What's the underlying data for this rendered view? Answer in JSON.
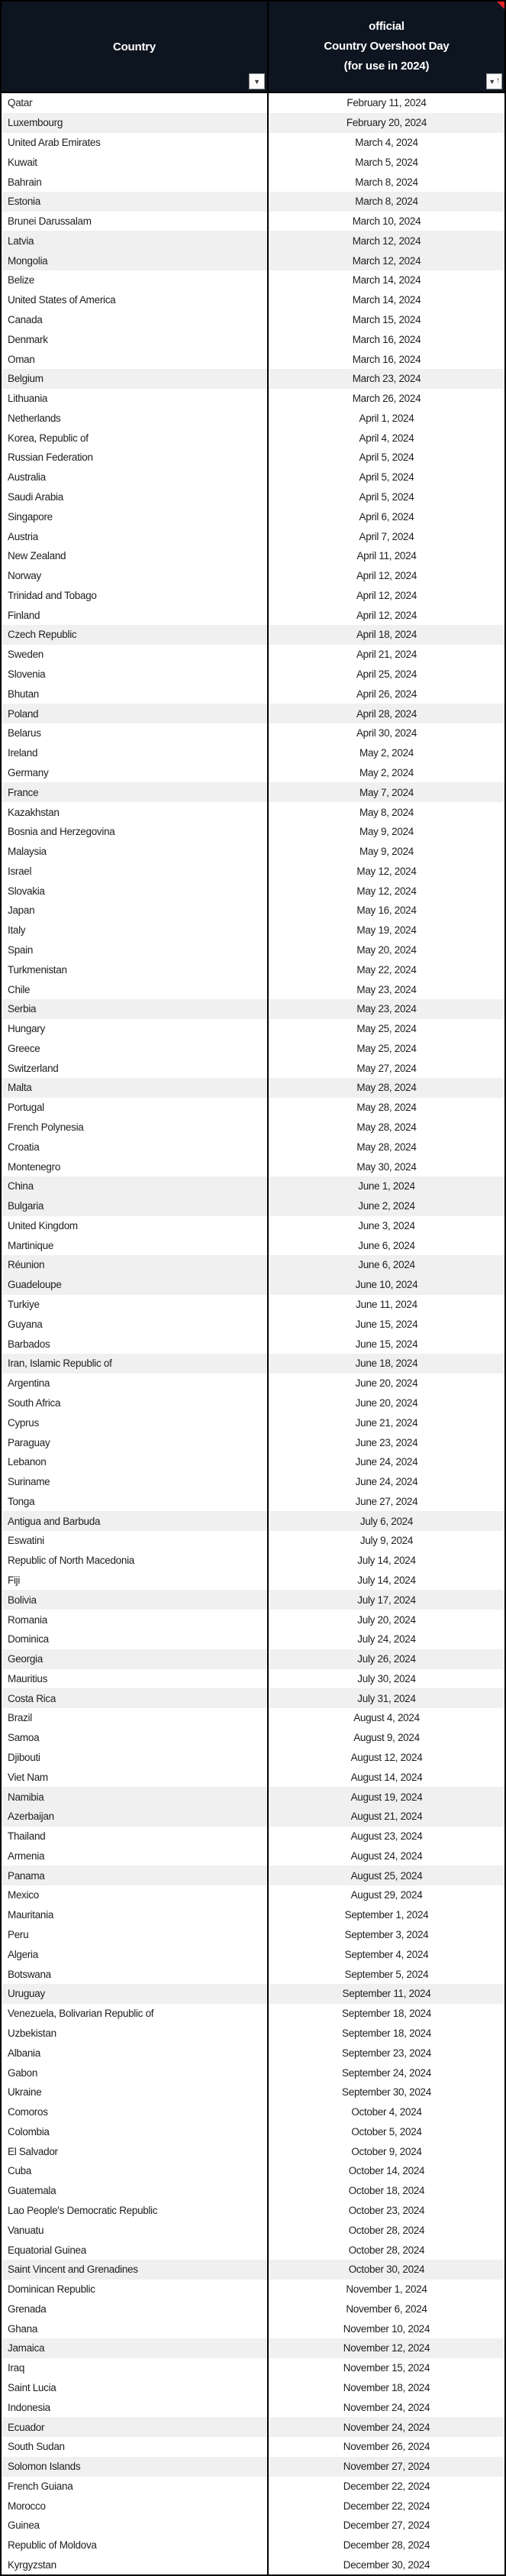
{
  "header": {
    "country_col": {
      "label": "Country"
    },
    "date_col": {
      "line1": "official",
      "line2": "Country Overshoot Day",
      "line3": "(for use in 2024)"
    },
    "icons": {
      "country_filter": "filter-dropdown-icon",
      "date_filter": "filter-dropdown-sort-ascending-icon",
      "comment_marker": "red-corner-comment-flag"
    }
  },
  "colors": {
    "header_bg": "#0d1520",
    "header_text": "#ffffff",
    "row_bg": "#ffffff",
    "row_alt_bg": "#f0f0f0",
    "body_text": "#1e1e1e",
    "border": "#000000",
    "flag": "#e5252b"
  },
  "table": {
    "rows": [
      {
        "country": "Qatar",
        "date": "February 11, 2024",
        "shaded": false
      },
      {
        "country": "Luxembourg",
        "date": "February 20, 2024",
        "shaded": true
      },
      {
        "country": "United Arab Emirates",
        "date": "March 4, 2024",
        "shaded": false
      },
      {
        "country": "Kuwait",
        "date": "March 5, 2024",
        "shaded": false
      },
      {
        "country": "Bahrain",
        "date": "March 8, 2024",
        "shaded": false
      },
      {
        "country": "Estonia",
        "date": "March 8, 2024",
        "shaded": true
      },
      {
        "country": "Brunei Darussalam",
        "date": "March 10, 2024",
        "shaded": false
      },
      {
        "country": "Latvia",
        "date": "March 12, 2024",
        "shaded": true
      },
      {
        "country": "Mongolia",
        "date": "March 12, 2024",
        "shaded": true
      },
      {
        "country": "Belize",
        "date": "March 14, 2024",
        "shaded": false
      },
      {
        "country": "United States of America",
        "date": "March 14, 2024",
        "shaded": false
      },
      {
        "country": "Canada",
        "date": "March 15, 2024",
        "shaded": false
      },
      {
        "country": "Denmark",
        "date": "March 16, 2024",
        "shaded": false
      },
      {
        "country": "Oman",
        "date": "March 16, 2024",
        "shaded": false
      },
      {
        "country": "Belgium",
        "date": "March 23, 2024",
        "shaded": true
      },
      {
        "country": "Lithuania",
        "date": "March 26, 2024",
        "shaded": false
      },
      {
        "country": "Netherlands",
        "date": "April 1, 2024",
        "shaded": false
      },
      {
        "country": "Korea, Republic of",
        "date": "April 4, 2024",
        "shaded": false
      },
      {
        "country": "Russian Federation",
        "date": "April 5, 2024",
        "shaded": false
      },
      {
        "country": "Australia",
        "date": "April 5, 2024",
        "shaded": false
      },
      {
        "country": "Saudi Arabia",
        "date": "April 5, 2024",
        "shaded": false
      },
      {
        "country": "Singapore",
        "date": "April 6, 2024",
        "shaded": false
      },
      {
        "country": "Austria",
        "date": "April 7, 2024",
        "shaded": false
      },
      {
        "country": "New Zealand",
        "date": "April 11, 2024",
        "shaded": false
      },
      {
        "country": "Norway",
        "date": "April 12, 2024",
        "shaded": false
      },
      {
        "country": "Trinidad and Tobago",
        "date": "April 12, 2024",
        "shaded": false
      },
      {
        "country": "Finland",
        "date": "April 12, 2024",
        "shaded": false
      },
      {
        "country": "Czech Republic",
        "date": "April 18, 2024",
        "shaded": true
      },
      {
        "country": "Sweden",
        "date": "April 21, 2024",
        "shaded": false
      },
      {
        "country": "Slovenia",
        "date": "April 25, 2024",
        "shaded": false
      },
      {
        "country": "Bhutan",
        "date": "April 26, 2024",
        "shaded": false
      },
      {
        "country": "Poland",
        "date": "April 28, 2024",
        "shaded": true
      },
      {
        "country": "Belarus",
        "date": "April 30, 2024",
        "shaded": false
      },
      {
        "country": "Ireland",
        "date": "May 2, 2024",
        "shaded": false
      },
      {
        "country": "Germany",
        "date": "May 2, 2024",
        "shaded": false
      },
      {
        "country": "France",
        "date": "May 7, 2024",
        "shaded": true
      },
      {
        "country": "Kazakhstan",
        "date": "May 8, 2024",
        "shaded": false
      },
      {
        "country": "Bosnia and Herzegovina",
        "date": "May 9, 2024",
        "shaded": false
      },
      {
        "country": "Malaysia",
        "date": "May 9, 2024",
        "shaded": false
      },
      {
        "country": "Israel",
        "date": "May 12, 2024",
        "shaded": false
      },
      {
        "country": "Slovakia",
        "date": "May 12, 2024",
        "shaded": false
      },
      {
        "country": "Japan",
        "date": "May 16, 2024",
        "shaded": false
      },
      {
        "country": "Italy",
        "date": "May 19, 2024",
        "shaded": false
      },
      {
        "country": "Spain",
        "date": "May 20, 2024",
        "shaded": false
      },
      {
        "country": "Turkmenistan",
        "date": "May 22, 2024",
        "shaded": false
      },
      {
        "country": "Chile",
        "date": "May 23, 2024",
        "shaded": false
      },
      {
        "country": "Serbia",
        "date": "May 23, 2024",
        "shaded": true
      },
      {
        "country": "Hungary",
        "date": "May 25, 2024",
        "shaded": false
      },
      {
        "country": "Greece",
        "date": "May 25, 2024",
        "shaded": false
      },
      {
        "country": "Switzerland",
        "date": "May 27, 2024",
        "shaded": false
      },
      {
        "country": "Malta",
        "date": "May 28, 2024",
        "shaded": true
      },
      {
        "country": "Portugal",
        "date": "May 28, 2024",
        "shaded": false
      },
      {
        "country": "French Polynesia",
        "date": "May 28, 2024",
        "shaded": false
      },
      {
        "country": "Croatia",
        "date": "May 28, 2024",
        "shaded": false
      },
      {
        "country": "Montenegro",
        "date": "May 30, 2024",
        "shaded": false
      },
      {
        "country": "China",
        "date": "June 1, 2024",
        "shaded": true
      },
      {
        "country": "Bulgaria",
        "date": "June 2, 2024",
        "shaded": true
      },
      {
        "country": "United Kingdom",
        "date": "June 3, 2024",
        "shaded": false
      },
      {
        "country": "Martinique",
        "date": "June 6, 2024",
        "shaded": false
      },
      {
        "country": "Réunion",
        "date": "June 6, 2024",
        "shaded": true
      },
      {
        "country": "Guadeloupe",
        "date": "June 10, 2024",
        "shaded": true
      },
      {
        "country": "Turkiye",
        "date": "June 11, 2024",
        "shaded": false
      },
      {
        "country": "Guyana",
        "date": "June 15, 2024",
        "shaded": false
      },
      {
        "country": "Barbados",
        "date": "June 15, 2024",
        "shaded": false
      },
      {
        "country": "Iran, Islamic Republic of",
        "date": "June 18, 2024",
        "shaded": true
      },
      {
        "country": "Argentina",
        "date": "June 20, 2024",
        "shaded": false
      },
      {
        "country": "South Africa",
        "date": "June 20, 2024",
        "shaded": false
      },
      {
        "country": "Cyprus",
        "date": "June 21, 2024",
        "shaded": false
      },
      {
        "country": "Paraguay",
        "date": "June 23, 2024",
        "shaded": false
      },
      {
        "country": "Lebanon",
        "date": "June 24, 2024",
        "shaded": false
      },
      {
        "country": "Suriname",
        "date": "June 24, 2024",
        "shaded": false
      },
      {
        "country": "Tonga",
        "date": "June 27, 2024",
        "shaded": false
      },
      {
        "country": "Antigua and Barbuda",
        "date": "July 6, 2024",
        "shaded": true
      },
      {
        "country": "Eswatini",
        "date": "July 9, 2024",
        "shaded": false
      },
      {
        "country": "Republic of North Macedonia",
        "date": "July 14, 2024",
        "shaded": false
      },
      {
        "country": "Fiji",
        "date": "July 14, 2024",
        "shaded": false
      },
      {
        "country": "Bolivia",
        "date": "July 17, 2024",
        "shaded": true
      },
      {
        "country": "Romania",
        "date": "July 20, 2024",
        "shaded": false
      },
      {
        "country": "Dominica",
        "date": "July 24, 2024",
        "shaded": false
      },
      {
        "country": "Georgia",
        "date": "July 26, 2024",
        "shaded": true
      },
      {
        "country": "Mauritius",
        "date": "July 30, 2024",
        "shaded": false
      },
      {
        "country": "Costa Rica",
        "date": "July 31, 2024",
        "shaded": true
      },
      {
        "country": "Brazil",
        "date": "August 4, 2024",
        "shaded": false
      },
      {
        "country": "Samoa",
        "date": "August 9, 2024",
        "shaded": false
      },
      {
        "country": "Djibouti",
        "date": "August 12, 2024",
        "shaded": false
      },
      {
        "country": "Viet Nam",
        "date": "August 14, 2024",
        "shaded": false
      },
      {
        "country": "Namibia",
        "date": "August 19, 2024",
        "shaded": true
      },
      {
        "country": "Azerbaijan",
        "date": "August 21, 2024",
        "shaded": true
      },
      {
        "country": "Thailand",
        "date": "August 23, 2024",
        "shaded": false
      },
      {
        "country": "Armenia",
        "date": "August 24, 2024",
        "shaded": false
      },
      {
        "country": "Panama",
        "date": "August 25, 2024",
        "shaded": true
      },
      {
        "country": "Mexico",
        "date": "August 29, 2024",
        "shaded": false
      },
      {
        "country": "Mauritania",
        "date": "September 1, 2024",
        "shaded": false
      },
      {
        "country": "Peru",
        "date": "September 3, 2024",
        "shaded": false
      },
      {
        "country": "Algeria",
        "date": "September 4, 2024",
        "shaded": false
      },
      {
        "country": "Botswana",
        "date": "September 5, 2024",
        "shaded": false
      },
      {
        "country": "Uruguay",
        "date": "September 11, 2024",
        "shaded": true
      },
      {
        "country": "Venezuela, Bolivarian Republic of",
        "date": "September 18, 2024",
        "shaded": false
      },
      {
        "country": "Uzbekistan",
        "date": "September 18, 2024",
        "shaded": false
      },
      {
        "country": "Albania",
        "date": "September 23, 2024",
        "shaded": false
      },
      {
        "country": "Gabon",
        "date": "September 24, 2024",
        "shaded": false
      },
      {
        "country": "Ukraine",
        "date": "September 30, 2024",
        "shaded": false
      },
      {
        "country": "Comoros",
        "date": "October 4, 2024",
        "shaded": false
      },
      {
        "country": "Colombia",
        "date": "October 5, 2024",
        "shaded": false
      },
      {
        "country": "El Salvador",
        "date": "October 9, 2024",
        "shaded": false
      },
      {
        "country": "Cuba",
        "date": "October 14, 2024",
        "shaded": false
      },
      {
        "country": "Guatemala",
        "date": "October 18, 2024",
        "shaded": false
      },
      {
        "country": "Lao People's Democratic Republic",
        "date": "October 23, 2024",
        "shaded": false
      },
      {
        "country": "Vanuatu",
        "date": "October 28, 2024",
        "shaded": false
      },
      {
        "country": "Equatorial Guinea",
        "date": "October 28, 2024",
        "shaded": false
      },
      {
        "country": "Saint Vincent and Grenadines",
        "date": "October 30, 2024",
        "shaded": true
      },
      {
        "country": "Dominican Republic",
        "date": "November 1, 2024",
        "shaded": false
      },
      {
        "country": "Grenada",
        "date": "November 6, 2024",
        "shaded": false
      },
      {
        "country": "Ghana",
        "date": "November 10, 2024",
        "shaded": false
      },
      {
        "country": "Jamaica",
        "date": "November 12, 2024",
        "shaded": true
      },
      {
        "country": "Iraq",
        "date": "November 15, 2024",
        "shaded": false
      },
      {
        "country": "Saint Lucia",
        "date": "November 18, 2024",
        "shaded": false
      },
      {
        "country": "Indonesia",
        "date": "November 24, 2024",
        "shaded": false
      },
      {
        "country": "Ecuador",
        "date": "November 24, 2024",
        "shaded": true
      },
      {
        "country": "South Sudan",
        "date": "November 26, 2024",
        "shaded": false
      },
      {
        "country": "Solomon Islands",
        "date": "November 27, 2024",
        "shaded": true
      },
      {
        "country": "French Guiana",
        "date": "December 22, 2024",
        "shaded": false
      },
      {
        "country": "Morocco",
        "date": "December 22, 2024",
        "shaded": false
      },
      {
        "country": "Guinea",
        "date": "December 27, 2024",
        "shaded": false
      },
      {
        "country": "Republic of Moldova",
        "date": "December 28, 2024",
        "shaded": false
      },
      {
        "country": "Kyrgyzstan",
        "date": "December 30, 2024",
        "shaded": false
      }
    ]
  }
}
